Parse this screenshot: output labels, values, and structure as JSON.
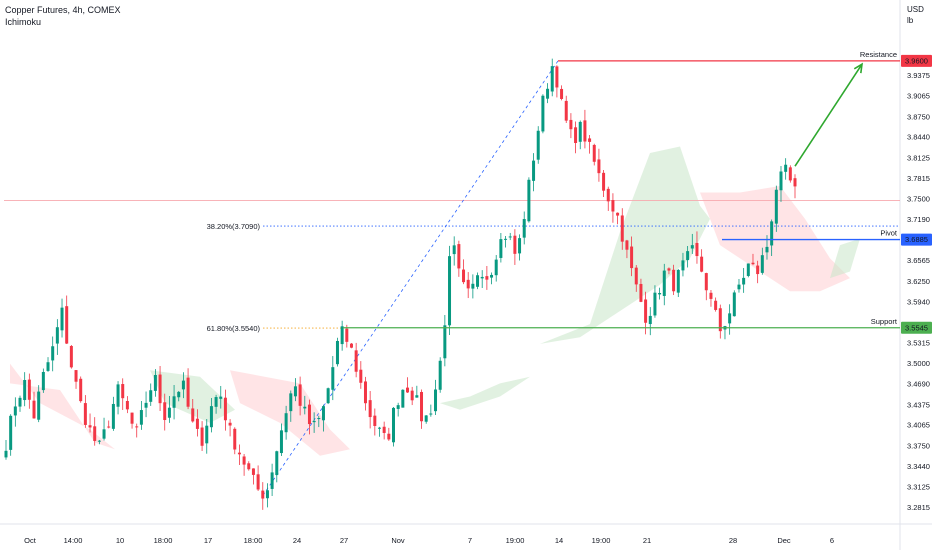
{
  "header": {
    "symbol_title": "Copper Futures, 4h, COMEX",
    "indicator": "Ichimoku",
    "currency": "USD",
    "unit": "lb"
  },
  "colors": {
    "bull": "#089981",
    "bear": "#f23645",
    "resistance": "#f23645",
    "pivot": "#2962ff",
    "support": "#4caf50",
    "fib_382": "#2962ff",
    "fib_618": "#f5a623",
    "arrow": "#2fa82f",
    "cloud_bull": "#c8e6c9",
    "cloud_bear": "#ffcdd2"
  },
  "chart_data": {
    "type": "candlestick",
    "title": "Copper Futures, 4h, COMEX",
    "indicators": [
      "Ichimoku"
    ],
    "y_axis": {
      "label": "USD / lb",
      "range": [
        3.27,
        4.01
      ],
      "ticks": [
        "3.9375",
        "3.9065",
        "3.8750",
        "3.8440",
        "3.8125",
        "3.7815",
        "3.7500",
        "3.7190",
        "3.6565",
        "3.6250",
        "3.5940",
        "3.5315",
        "3.5000",
        "3.4690",
        "3.4375",
        "3.4065",
        "3.3750",
        "3.3440",
        "3.3125",
        "3.2815"
      ]
    },
    "x_axis": {
      "ticks": [
        "Oct",
        "14:00",
        "10",
        "18:00",
        "17",
        "18:00",
        "24",
        "27",
        "Nov",
        "7",
        "19:00",
        "14",
        "19:00",
        "21",
        "28",
        "Dec",
        "6"
      ]
    },
    "levels": [
      {
        "label": "Resistance",
        "value": 3.96,
        "display": "3.9600"
      },
      {
        "label": "Pivot",
        "value": 3.6885,
        "display": "3.6885"
      },
      {
        "label": "Support",
        "value": 3.5545,
        "display": "3.5545"
      }
    ],
    "fibonacci": [
      {
        "label": "38.20%(3.7090)",
        "value": 3.709
      },
      {
        "label": "61.80%(3.5540)",
        "value": 3.554
      }
    ],
    "current_price_line": 3.748,
    "price_path": [
      3.38,
      3.44,
      3.47,
      3.42,
      3.48,
      3.52,
      3.58,
      3.5,
      3.44,
      3.4,
      3.37,
      3.41,
      3.46,
      3.43,
      3.39,
      3.44,
      3.48,
      3.42,
      3.45,
      3.47,
      3.41,
      3.38,
      3.43,
      3.46,
      3.4,
      3.37,
      3.34,
      3.31,
      3.3,
      3.36,
      3.42,
      3.47,
      3.43,
      3.4,
      3.42,
      3.48,
      3.55,
      3.53,
      3.48,
      3.43,
      3.4,
      3.38,
      3.44,
      3.47,
      3.45,
      3.41,
      3.44,
      3.52,
      3.69,
      3.62,
      3.6,
      3.65,
      3.63,
      3.68,
      3.7,
      3.66,
      3.74,
      3.83,
      3.91,
      3.96,
      3.88,
      3.84,
      3.86,
      3.82,
      3.78,
      3.75,
      3.72,
      3.66,
      3.61,
      3.57,
      3.6,
      3.64,
      3.62,
      3.65,
      3.67,
      3.64,
      3.59,
      3.55,
      3.58,
      3.62,
      3.65,
      3.64,
      3.68,
      3.77,
      3.79,
      3.76
    ],
    "projection_arrow": {
      "from": 3.8,
      "to": 3.955
    }
  }
}
